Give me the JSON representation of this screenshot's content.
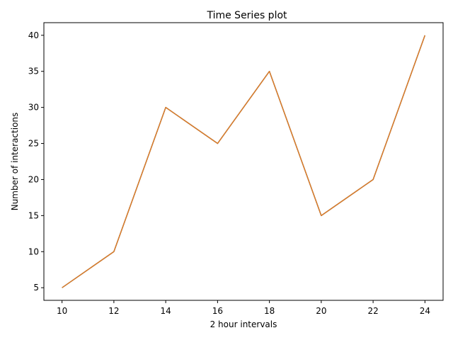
{
  "chart_data": {
    "type": "line",
    "title": "Time Series plot",
    "xlabel": "2 hour intervals",
    "ylabel": "Number of interactions",
    "x": [
      10,
      12,
      14,
      16,
      18,
      20,
      22,
      24
    ],
    "series": [
      {
        "values": [
          5,
          10,
          30,
          25,
          35,
          15,
          20,
          40
        ],
        "color": "#1f77b4"
      },
      {
        "values": [
          5,
          10,
          30,
          25,
          35,
          15,
          20,
          40
        ],
        "color": "#e07b24"
      }
    ],
    "xlim": [
      9.3,
      24.7
    ],
    "ylim": [
      3.25,
      41.75
    ],
    "xticks": [
      10,
      12,
      14,
      16,
      18,
      20,
      22,
      24
    ],
    "yticks": [
      5,
      10,
      15,
      20,
      25,
      30,
      35,
      40
    ],
    "grid": false,
    "legend": "none"
  }
}
